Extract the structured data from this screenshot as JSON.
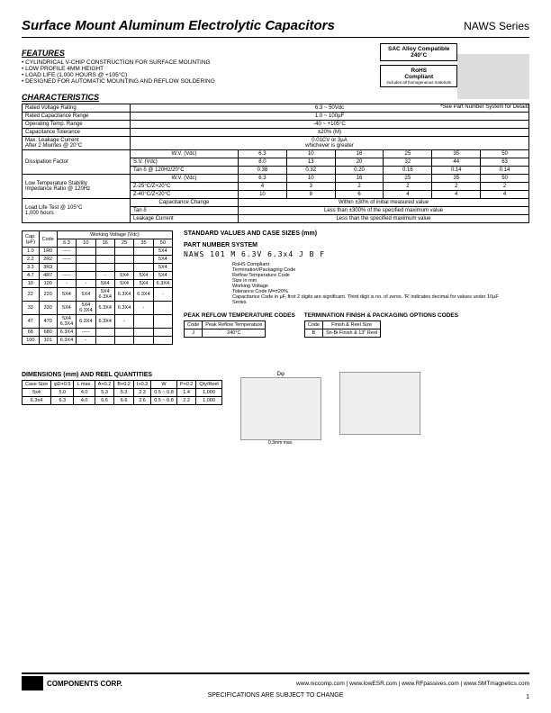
{
  "header": {
    "title": "Surface Mount Aluminum Electrolytic Capacitors",
    "series": "NAWS Series"
  },
  "features": {
    "heading": "FEATURES",
    "items": [
      "CYLINDRICAL V-CHIP CONSTRUCTION FOR SURFACE MOUNTING",
      "LOW PROFILE 4MM HEIGHT",
      "LOAD LIFE (1,000 HOURS @ +105°C)",
      "DESIGNED FOR AUTOMATIC MOUNTING AND REFLOW SOLDERING"
    ]
  },
  "sac_box": {
    "l1": "SAC Alloy Compatible",
    "l2": "240°C"
  },
  "rohs_box": {
    "l1": "RoHS",
    "l2": "Compliant",
    "l3": "includes all homogeneous materials"
  },
  "note": "*See Part Number System for Details",
  "characteristics": {
    "heading": "CHARACTERISTICS",
    "rows": [
      [
        "Rated Voltage Rating",
        "6.3 ~ 50Vdc"
      ],
      [
        "Rated Capacitance Range",
        "1.0 ~ 100µF"
      ],
      [
        "Operating Temp. Range",
        "-40 ~ +105°C"
      ],
      [
        "Capacitance Tolerance",
        "±20% (M)"
      ],
      [
        "Max. Leakage Current\nAfter 2 Miuntes @ 20°C",
        "0.01CV or 3µA\nwhichever is greater"
      ]
    ],
    "dissipation": {
      "label": "Dissipation Factor",
      "headers": [
        "W.V. (Vdc)",
        "6.3",
        "10",
        "16",
        "25",
        "35",
        "50"
      ],
      "sv": [
        "S.V. (Vdc)",
        "8.0",
        "13",
        "20",
        "32",
        "44",
        "63"
      ],
      "tan": [
        "Tan δ @ 120Hz/20°C",
        "0.38",
        "0.32",
        "0.20",
        "0.16",
        "0.14",
        "0.14"
      ]
    },
    "lowtemp": {
      "label": "Low Temperature Stability\nImpedance Ratio @ 120Hz",
      "wv": [
        "W.V. (Vdc)",
        "6.3",
        "10",
        "16",
        "25",
        "35",
        "50"
      ],
      "z1": [
        "Z-25°C/Z+20°C",
        "4",
        "3",
        "2",
        "2",
        "2",
        "2"
      ],
      "z2": [
        "Z-40°C/Z+20°C",
        "10",
        "8",
        "6",
        "4",
        "4",
        "4"
      ]
    },
    "loadlife": {
      "label": "Load Life Test @ 105°C\n1,000 hours",
      "cap": [
        "Capacitance Change",
        "Within ±30% of initial measured value"
      ],
      "tan": [
        "Tan δ",
        "Less than ±300% of the specified maximum value"
      ],
      "leak": [
        "Leakage Current",
        "Less than the specified maximum value"
      ]
    }
  },
  "std_values": {
    "heading": "STANDARD VALUES AND CASE SIZES (mm)",
    "wv_header": "Working Voltage (Vdc)",
    "cap_header": "Cap.\n(µF)",
    "code_header": "Code",
    "voltages": [
      "6.3",
      "10",
      "16",
      "25",
      "35",
      "50"
    ],
    "rows": [
      [
        "1.0",
        "1R0",
        "-----",
        "",
        "",
        "",
        "",
        "5X4"
      ],
      [
        "2.2",
        "2R2",
        "-----",
        "",
        "",
        "",
        "",
        "5X4"
      ],
      [
        "3.3",
        "3R3",
        "",
        "",
        "",
        "",
        "",
        "5X4"
      ],
      [
        "4.7",
        "4R7",
        "-----",
        "",
        "-",
        "5X4",
        "5X4",
        "5X4"
      ],
      [
        "10",
        "100",
        "-",
        "-",
        "5X4",
        "5X4",
        "5X4",
        "6.3X4"
      ],
      [
        "22",
        "220",
        "5X4",
        "5X4",
        "5X4\n6.3X4",
        "6.3X4",
        "6.3X4",
        "-"
      ],
      [
        "33",
        "330",
        "5X4",
        "5X4\n6.3X4",
        "6.3X4",
        "6.3X4",
        "-",
        ""
      ],
      [
        "47",
        "470",
        "5X4\n6.3X4",
        "6.3X4",
        "6.3X4",
        "-",
        "",
        ""
      ],
      [
        "68",
        "680",
        "6.3X4",
        "-----",
        "",
        "",
        "",
        ""
      ],
      [
        "100",
        "101",
        "6.3X4",
        "-",
        "",
        "",
        "",
        ""
      ]
    ]
  },
  "part_number": {
    "heading": "PART NUMBER SYSTEM",
    "example": "NAWS  101  M  6.3V  6.3x4  J B  F",
    "legend": [
      "RoHS Compliant",
      "Termination/Packaging Code",
      "Reflow Temperature Code",
      "Size in mm",
      "Working Voltage",
      "Tolerance Code M=±20%",
      "Capacitance Code in µF, first 2 digits are significant. Third digit is no. of zeros. 'R' indicates decimal for values under 10µF",
      "Series"
    ]
  },
  "peak_reflow": {
    "heading": "PEAK REFLOW TEMPERATURE CODES",
    "cols": [
      "Code",
      "Peak Reflow Temperature"
    ],
    "row": [
      "J",
      "240°C"
    ]
  },
  "termination": {
    "heading": "TERMINATION FINISH & PACKAGING OPTIONS CODES",
    "cols": [
      "Code",
      "Finish & Reel Size"
    ],
    "row": [
      "B",
      "Sn-Bi Finish & 13\" Reel"
    ]
  },
  "dimensions": {
    "heading": "DIMENSIONS (mm) AND REEL QUANTITIES",
    "cols": [
      "Case Size",
      "φD+0.5",
      "L max.",
      "A+0.2",
      "B+0.2",
      "I+0.3",
      "W",
      "P+0.2",
      "Qty/Reel"
    ],
    "rows": [
      [
        "5x4",
        "5.0",
        "4.0",
        "5.3",
        "5.3",
        "2.3",
        "0.5 ~ 0.8",
        "1.4",
        "1,000"
      ],
      [
        "6.3x4",
        "6.3",
        "4.0",
        "6.6",
        "6.6",
        "2.6",
        "0.5 ~ 0.8",
        "2.2",
        "1,000"
      ]
    ],
    "note": "0.3mm max."
  },
  "footer": {
    "corp": "COMPONENTS CORP.",
    "urls": "www.niccomp.com  |  www.lowESR.com  |  www.RFpassives.com  |  www.SMTmagnetics.com",
    "spec": "SPECIFICATIONS ARE SUBJECT TO CHANGE",
    "page": "1"
  }
}
